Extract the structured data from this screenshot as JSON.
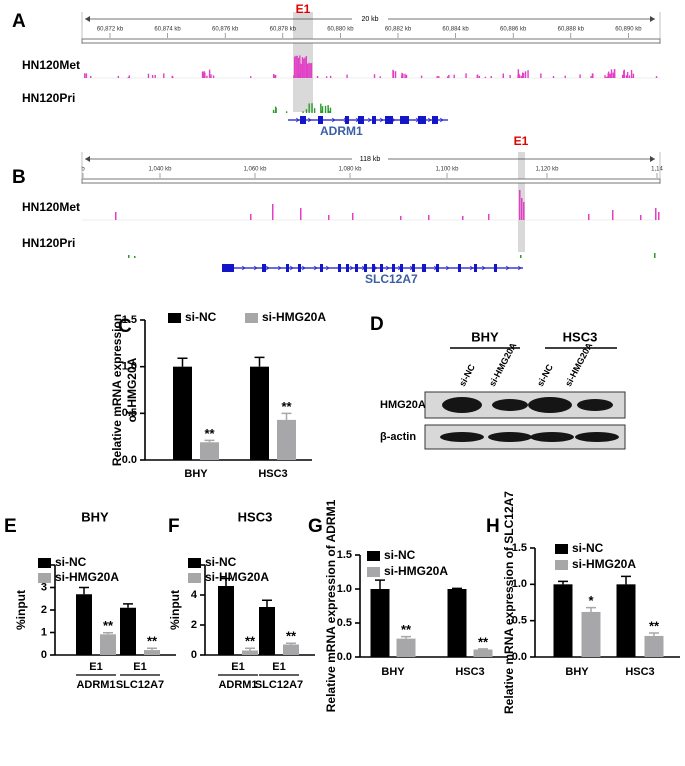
{
  "genome_tracks": [
    {
      "panel": "A",
      "span": "20 kb",
      "ticks": [
        "60,872 kb",
        "60,874 kb",
        "60,876 kb",
        "60,878 kb",
        "60,880 kb",
        "60,882 kb",
        "60,884 kb",
        "60,886 kb",
        "60,888 kb",
        "60,890 kb"
      ],
      "highlight": "E1",
      "tracks": [
        "HN120Met",
        "HN120Pri"
      ],
      "gene": "ADRM1"
    },
    {
      "panel": "B",
      "span": "118 kb",
      "ticks": [
        "b",
        "1,040 kb",
        "1,060 kb",
        "1,080 kb",
        "1,100 kb",
        "1,120 kb",
        "1,14"
      ],
      "highlight": "E1",
      "tracks": [
        "HN120Met",
        "HN120Pri"
      ],
      "gene": "SLC12A7"
    }
  ],
  "blot": {
    "panel": "D",
    "groups": [
      "BHY",
      "HSC3"
    ],
    "lanes": [
      "si-NC",
      "si-HMG20A",
      "si-NC",
      "si-HMG20A"
    ],
    "rows": [
      "HMG20A",
      "β-actin"
    ]
  },
  "chart_data": [
    {
      "type": "bar",
      "panel": "C",
      "ylabel": [
        "Relative mRNA expression",
        "of  HMG20A"
      ],
      "categories": [
        "BHY",
        "HSC3"
      ],
      "series": [
        {
          "name": "si-NC",
          "color": "#000000",
          "values": [
            1.0,
            1.0
          ],
          "errors": [
            0.09,
            0.1
          ]
        },
        {
          "name": "si-HMG20A",
          "color": "#a7a7aa",
          "values": [
            0.19,
            0.43
          ],
          "errors": [
            0.02,
            0.07
          ],
          "annotations": [
            "**",
            "**"
          ]
        }
      ],
      "ylim": [
        0,
        1.5
      ],
      "yticks": [
        {
          "value": 0,
          "label": "0.0"
        },
        {
          "value": 0.5,
          "label": "0.5"
        },
        {
          "value": 1,
          "label": "1.0"
        },
        {
          "value": 1.5,
          "label": "1.5"
        }
      ],
      "legend": "top"
    },
    {
      "type": "bar",
      "panel": "E",
      "title": "BHY",
      "ylabel": "%input",
      "categories": [
        "E1",
        "E1"
      ],
      "groups": [
        "ADRM1",
        "SLC12A7"
      ],
      "series": [
        {
          "name": "si-NC",
          "color": "#000000",
          "values": [
            2.7,
            2.1
          ],
          "errors": [
            0.3,
            0.17
          ]
        },
        {
          "name": "si-HMG20A",
          "color": "#a7a7aa",
          "values": [
            0.92,
            0.22
          ],
          "errors": [
            0.07,
            0.08
          ],
          "annotations": [
            "**",
            "**"
          ]
        }
      ],
      "ylim": [
        0,
        4
      ],
      "yticks": [
        0,
        1,
        2,
        3,
        4
      ],
      "legend": "top-left"
    },
    {
      "type": "bar",
      "panel": "F",
      "title": "HSC3",
      "ylabel": "%input",
      "categories": [
        "E1",
        "E1"
      ],
      "groups": [
        "ADRM1",
        "SLC12A7"
      ],
      "series": [
        {
          "name": "si-NC",
          "color": "#000000",
          "values": [
            4.6,
            3.2
          ],
          "errors": [
            0.5,
            0.45
          ]
        },
        {
          "name": "si-HMG20A",
          "color": "#a7a7aa",
          "values": [
            0.3,
            0.7
          ],
          "errors": [
            0.15,
            0.08
          ],
          "annotations": [
            "**",
            "**"
          ]
        }
      ],
      "ylim": [
        0,
        6
      ],
      "yticks": [
        0,
        2,
        4,
        6
      ],
      "legend": "top-left"
    },
    {
      "type": "bar",
      "panel": "G",
      "ylabel": "Relative mRNA expression of  ADRM1",
      "categories": [
        "BHY",
        "HSC3"
      ],
      "series": [
        {
          "name": "si-NC",
          "color": "#000000",
          "values": [
            1.0,
            1.0
          ],
          "errors": [
            0.13,
            0.01
          ]
        },
        {
          "name": "si-HMG20A",
          "color": "#a7a7aa",
          "values": [
            0.27,
            0.11
          ],
          "errors": [
            0.03,
            0.01
          ],
          "annotations": [
            "**",
            "**"
          ]
        }
      ],
      "ylim": [
        0,
        1.5
      ],
      "yticks": [
        {
          "value": 0,
          "label": "0.0"
        },
        {
          "value": 0.5,
          "label": "0.5"
        },
        {
          "value": 1,
          "label": "1.0"
        },
        {
          "value": 1.5,
          "label": "1.5"
        }
      ],
      "legend": "top-left"
    },
    {
      "type": "bar",
      "panel": "H",
      "ylabel": "Relative mRNA expression of  SLC12A7",
      "categories": [
        "BHY",
        "HSC3"
      ],
      "series": [
        {
          "name": "si-NC",
          "color": "#000000",
          "values": [
            1.0,
            1.0
          ],
          "errors": [
            0.04,
            0.11
          ]
        },
        {
          "name": "si-HMG20A",
          "color": "#a7a7aa",
          "values": [
            0.62,
            0.29
          ],
          "errors": [
            0.06,
            0.04
          ],
          "annotations": [
            "*",
            "**"
          ]
        }
      ],
      "ylim": [
        0,
        1.5
      ],
      "yticks": [
        {
          "value": 0,
          "label": "0.0"
        },
        {
          "value": 0.5,
          "label": "0.5"
        },
        {
          "value": 1,
          "label": "1.0"
        },
        {
          "value": 1.5,
          "label": "1.5"
        }
      ],
      "legend": "top-left"
    }
  ]
}
